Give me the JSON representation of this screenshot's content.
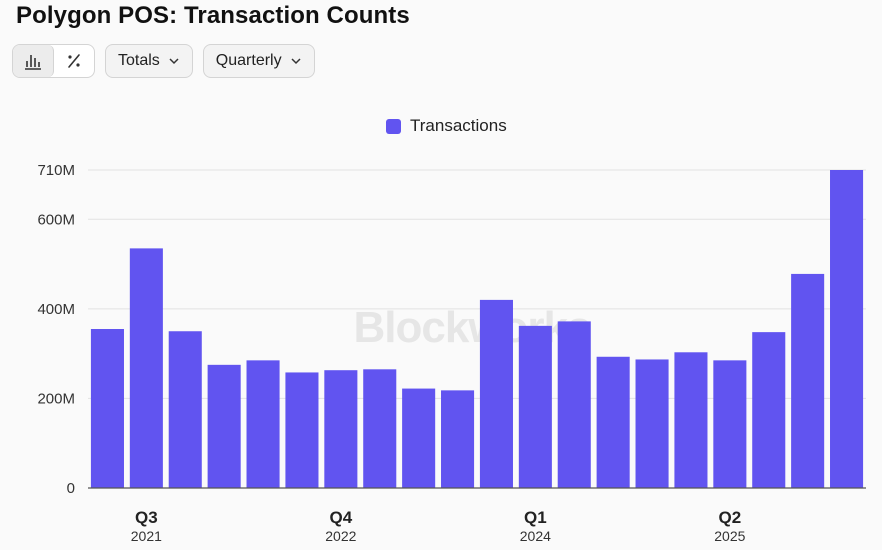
{
  "header": {
    "title": "Polygon POS: Transaction Counts"
  },
  "toolbar": {
    "view_modes": [
      {
        "name": "bar-chart-icon",
        "active": true
      },
      {
        "name": "percent-icon",
        "active": false
      }
    ],
    "metric_dropdown": {
      "label": "Totals"
    },
    "period_dropdown": {
      "label": "Quarterly"
    }
  },
  "watermark": "Blockworks",
  "colors": {
    "bar": "#6154f0",
    "grid": "#e2e2e2",
    "axis": "#555555",
    "background": "#fafafa"
  },
  "chart_data": {
    "type": "bar",
    "legend": {
      "position": "top-center",
      "entries": [
        "Transactions"
      ]
    },
    "series": [
      {
        "name": "Transactions",
        "values": [
          355000000,
          535000000,
          350000000,
          275000000,
          285000000,
          258000000,
          263000000,
          265000000,
          222000000,
          218000000,
          420000000,
          362000000,
          372000000,
          293000000,
          287000000,
          303000000,
          285000000,
          348000000,
          478000000,
          710000000
        ]
      }
    ],
    "x_axis": {
      "major_labels": [
        {
          "index": 1,
          "label": "Q3",
          "sublabel": "2021"
        },
        {
          "index": 6,
          "label": "Q4",
          "sublabel": "2022"
        },
        {
          "index": 11,
          "label": "Q1",
          "sublabel": "2024"
        },
        {
          "index": 16,
          "label": "Q2",
          "sublabel": "2025"
        }
      ]
    },
    "y_axis": {
      "ticks": [
        {
          "value": 0,
          "label": "0"
        },
        {
          "value": 200000000,
          "label": "200M"
        },
        {
          "value": 400000000,
          "label": "400M"
        },
        {
          "value": 600000000,
          "label": "600M"
        },
        {
          "value": 710000000,
          "label": "710M"
        }
      ],
      "ylim": [
        0,
        710000000
      ]
    },
    "grid": true
  }
}
